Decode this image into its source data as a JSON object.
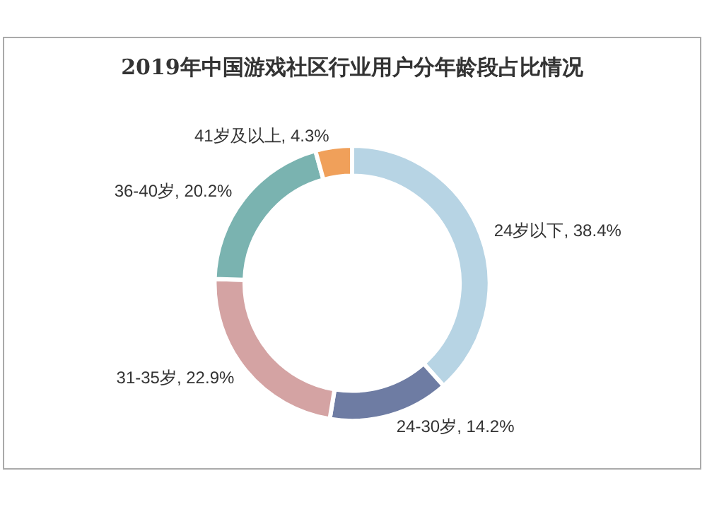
{
  "chart_data": {
    "type": "donut",
    "title": "2019年中国游戏社区行业用户分年龄段占比情况",
    "categories": [
      "24岁以下",
      "24-30岁",
      "31-35岁",
      "36-40岁",
      "41岁及以上"
    ],
    "values": [
      38.4,
      14.2,
      22.9,
      20.2,
      4.3
    ],
    "value_labels": [
      "38.4%",
      "14.2%",
      "22.9%",
      "20.2%",
      "4.3%"
    ],
    "colors": [
      "#b7d4e4",
      "#6e7ca3",
      "#d4a3a3",
      "#7ab3b0",
      "#f0a05a"
    ],
    "legend": false
  }
}
